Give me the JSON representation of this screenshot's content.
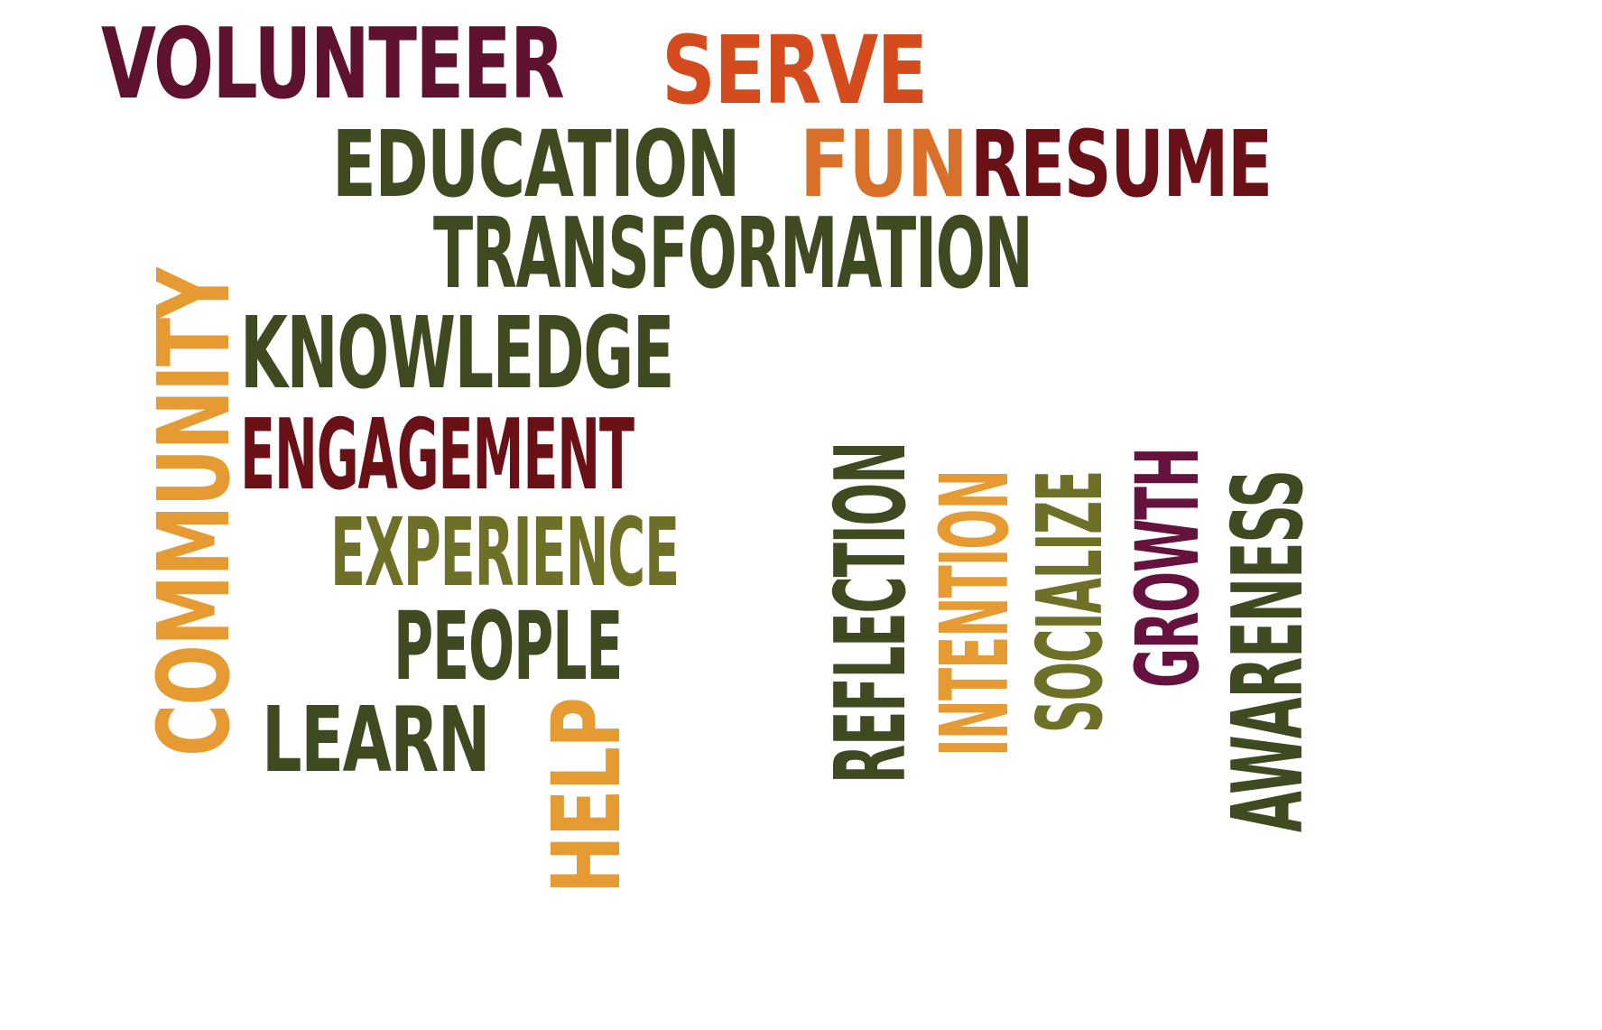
{
  "words": {
    "volunteer": "VOLUNTEER",
    "serve": "SERVE",
    "education": "EDUCATION",
    "fun": "FUN",
    "resume": "RESUME",
    "transformation": "TRANSFORMATION",
    "community": "COMMUNITY",
    "knowledge": "KNOWLEDGE",
    "engagement": "ENGAGEMENT",
    "experience": "EXPERIENCE",
    "people": "PEOPLE",
    "learn": "LEARN",
    "help": "HELP",
    "reflection": "REFLECTION",
    "intention": "INTENTION",
    "socialize": "SOCIALIZE",
    "growth": "GROWTH",
    "awareness": "AWARENESS"
  },
  "colors": {
    "dark_green": "#3f4a20",
    "olive": "#6f7028",
    "maroon": "#5f1230",
    "dark_red": "#6a1118",
    "orange_red": "#d44c1e",
    "orange": "#d9702a",
    "amber": "#e69a32",
    "purple": "#66123f"
  }
}
